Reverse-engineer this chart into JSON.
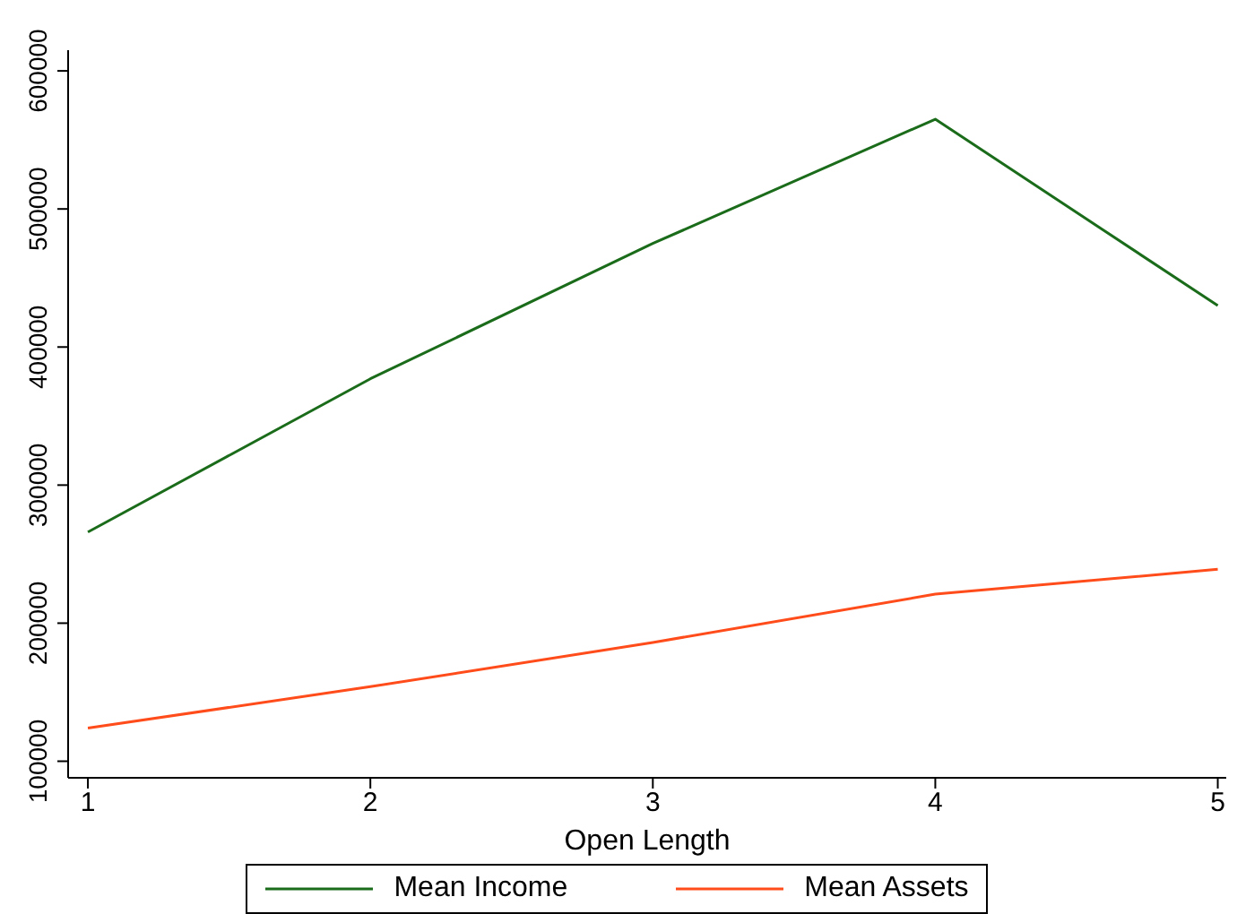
{
  "chart_data": {
    "type": "line",
    "xlabel": "Open Length",
    "x": [
      1,
      2,
      3,
      4,
      5
    ],
    "series": [
      {
        "name": "Mean Income",
        "color": "#1a6b1a",
        "values": [
          266000,
          377000,
          475000,
          565000,
          430000
        ]
      },
      {
        "name": "Mean Assets",
        "color": "#ff4c1a",
        "values": [
          124000,
          154000,
          186000,
          221000,
          239000
        ]
      }
    ],
    "xlim": [
      0.93,
      5.03
    ],
    "xticks": [
      1,
      2,
      3,
      4,
      5
    ],
    "ylim": [
      88000,
      615000
    ],
    "yticks": [
      100000,
      200000,
      300000,
      400000,
      500000,
      600000
    ],
    "grid": false,
    "legend": "bottom",
    "marker": "none",
    "line_style": "solid"
  }
}
